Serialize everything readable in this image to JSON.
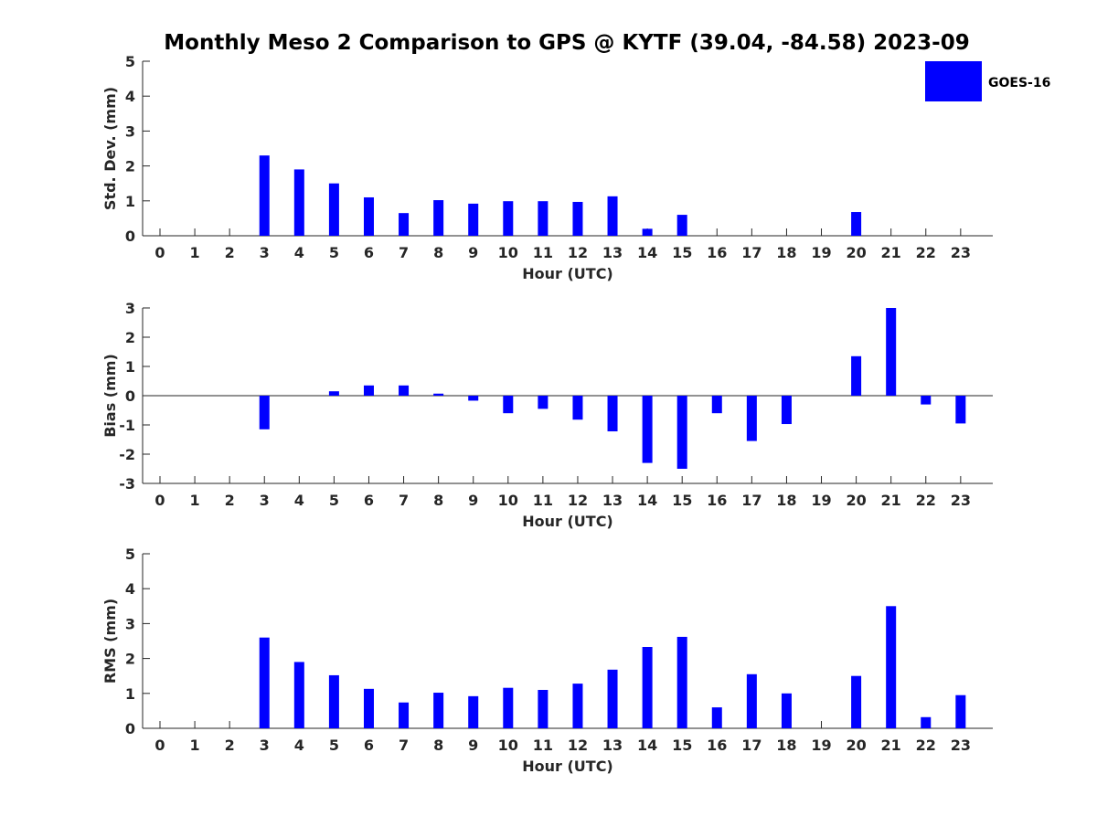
{
  "title": "Monthly Meso 2 Comparison to GPS @ KYTF (39.04, -84.58) 2023-09",
  "legend": {
    "label": "GOES-16",
    "color": "#0000ff",
    "placement": "top-right"
  },
  "chart_data": [
    {
      "type": "bar",
      "ylabel": "Std. Dev. (mm)",
      "xlabel": "Hour (UTC)",
      "ylim": [
        0,
        5
      ],
      "yticks": [
        0,
        1,
        2,
        3,
        4,
        5
      ],
      "categories": [
        "0",
        "1",
        "2",
        "3",
        "4",
        "5",
        "6",
        "7",
        "8",
        "9",
        "10",
        "11",
        "12",
        "13",
        "14",
        "15",
        "16",
        "17",
        "18",
        "19",
        "20",
        "21",
        "22",
        "23"
      ],
      "series": [
        {
          "name": "GOES-16",
          "values": [
            null,
            null,
            null,
            2.3,
            1.9,
            1.5,
            1.1,
            0.65,
            1.02,
            0.92,
            0.99,
            0.99,
            0.97,
            1.13,
            0.2,
            0.6,
            null,
            null,
            null,
            null,
            0.68,
            null,
            null,
            null
          ]
        }
      ],
      "grid": false
    },
    {
      "type": "bar",
      "ylabel": "Bias (mm)",
      "xlabel": "Hour (UTC)",
      "ylim": [
        -3,
        3
      ],
      "yticks": [
        -3,
        -2,
        -1,
        0,
        1,
        2,
        3
      ],
      "categories": [
        "0",
        "1",
        "2",
        "3",
        "4",
        "5",
        "6",
        "7",
        "8",
        "9",
        "10",
        "11",
        "12",
        "13",
        "14",
        "15",
        "16",
        "17",
        "18",
        "19",
        "20",
        "21",
        "22",
        "23"
      ],
      "series": [
        {
          "name": "GOES-16",
          "values": [
            null,
            null,
            null,
            -1.15,
            null,
            0.15,
            0.35,
            0.35,
            0.07,
            -0.17,
            -0.6,
            -0.45,
            -0.82,
            -1.22,
            -2.3,
            -2.5,
            -0.6,
            -1.55,
            -0.97,
            null,
            1.35,
            3.0,
            -0.3,
            -0.95
          ]
        }
      ],
      "grid": false
    },
    {
      "type": "bar",
      "ylabel": "RMS (mm)",
      "xlabel": "Hour (UTC)",
      "ylim": [
        0,
        5
      ],
      "yticks": [
        0,
        1,
        2,
        3,
        4,
        5
      ],
      "categories": [
        "0",
        "1",
        "2",
        "3",
        "4",
        "5",
        "6",
        "7",
        "8",
        "9",
        "10",
        "11",
        "12",
        "13",
        "14",
        "15",
        "16",
        "17",
        "18",
        "19",
        "20",
        "21",
        "22",
        "23"
      ],
      "series": [
        {
          "name": "GOES-16",
          "values": [
            null,
            null,
            null,
            2.6,
            1.9,
            1.52,
            1.13,
            0.74,
            1.02,
            0.92,
            1.16,
            1.1,
            1.28,
            1.68,
            2.33,
            2.62,
            0.6,
            1.55,
            1.0,
            null,
            1.5,
            3.5,
            0.32,
            0.95
          ]
        }
      ],
      "grid": false
    }
  ]
}
